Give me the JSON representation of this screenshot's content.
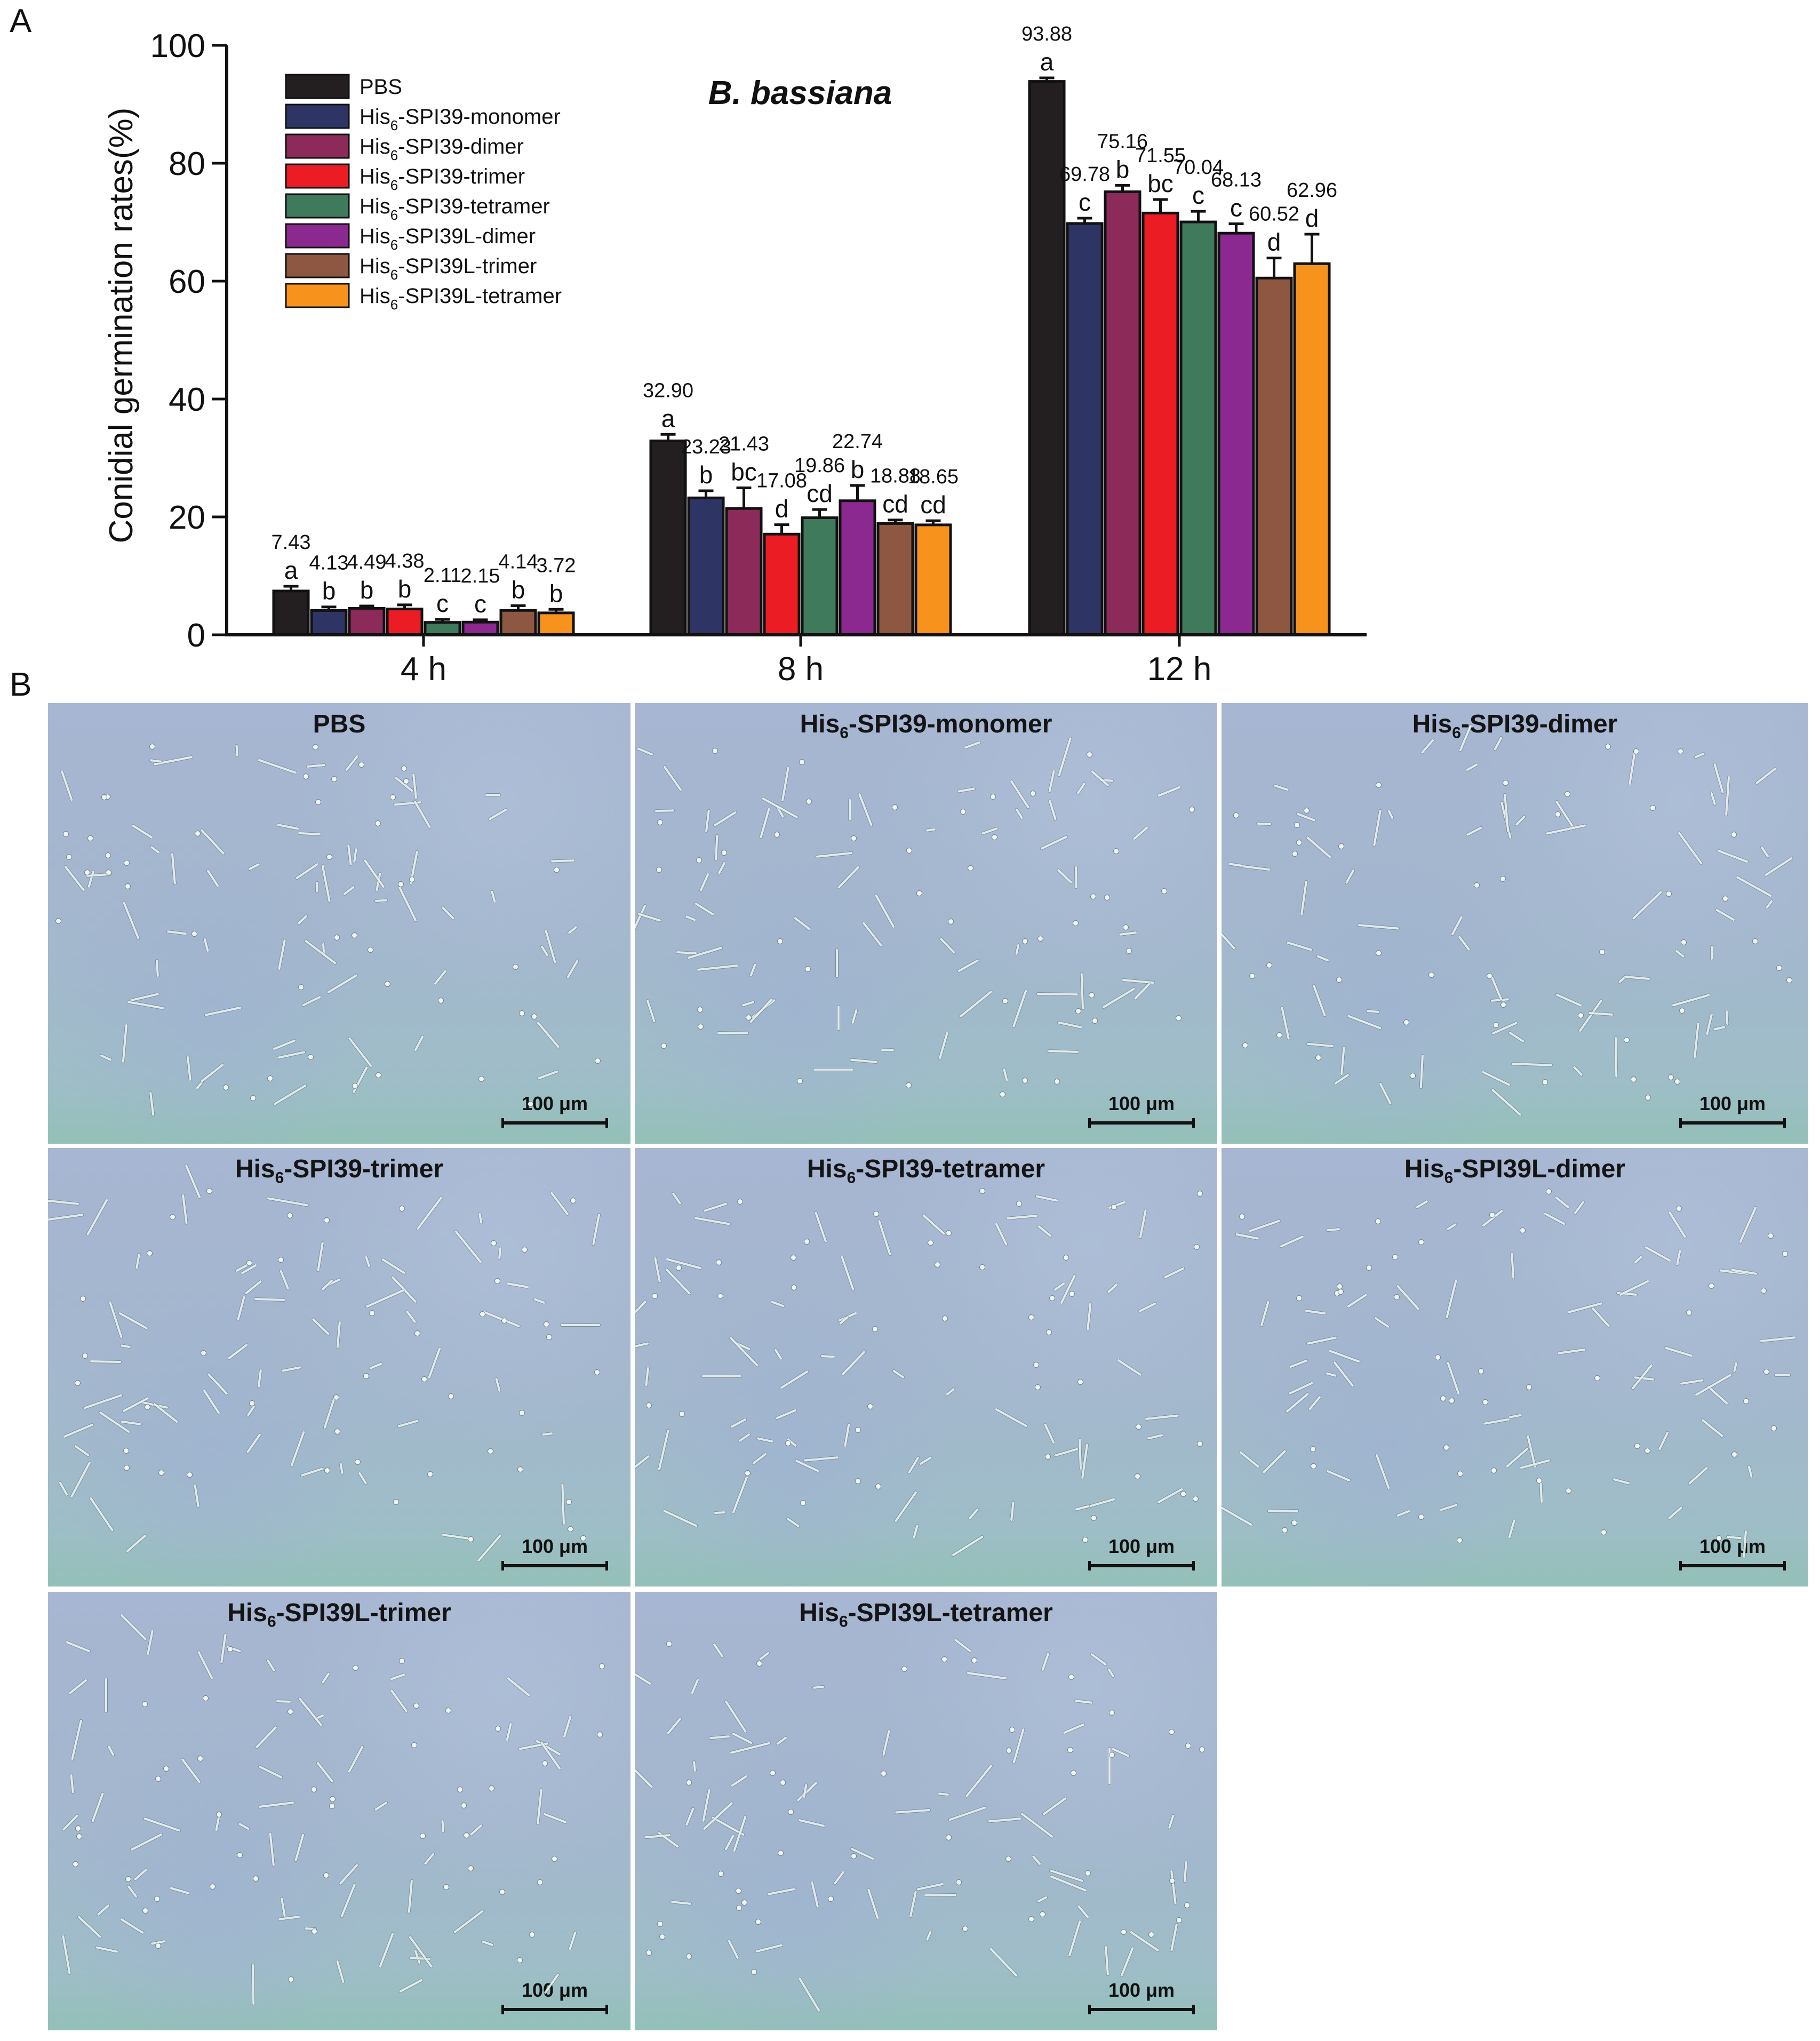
{
  "panel_labels": {
    "a": "A",
    "b": "B"
  },
  "chart_data": {
    "type": "bar",
    "title": "B. bassiana",
    "xlabel": "",
    "ylabel": "Conidial germination rates(%)",
    "ylim": [
      0,
      100
    ],
    "yticks": [
      0,
      20,
      40,
      60,
      80,
      100
    ],
    "categories": [
      "4 h",
      "8 h",
      "12 h"
    ],
    "legend_position": "top-left",
    "series": [
      {
        "name_prefix": "PBS",
        "name_sub": "",
        "name_suffix": "",
        "color": "#231f20",
        "values": [
          7.43,
          32.9,
          93.88
        ],
        "errors": [
          0.8,
          1.1,
          0.6
        ],
        "value_labels": [
          "7.43",
          "32.90",
          "93.88"
        ],
        "letters": [
          "a",
          "a",
          "a"
        ]
      },
      {
        "name_prefix": "His",
        "name_sub": "6",
        "name_suffix": "-SPI39-monomer",
        "color": "#2e3565",
        "values": [
          4.13,
          23.23,
          69.78
        ],
        "errors": [
          0.6,
          1.2,
          0.9
        ],
        "value_labels": [
          "4.13",
          "23.23",
          "69.78"
        ],
        "letters": [
          "b",
          "b",
          "c"
        ]
      },
      {
        "name_prefix": "His",
        "name_sub": "6",
        "name_suffix": "-SPI39-dimer",
        "color": "#8c2b5a",
        "values": [
          4.49,
          21.43,
          75.16
        ],
        "errors": [
          0.4,
          3.5,
          1.1
        ],
        "value_labels": [
          "4.49",
          "21.43",
          "75.16"
        ],
        "letters": [
          "b",
          "bc",
          "b"
        ]
      },
      {
        "name_prefix": "His",
        "name_sub": "6",
        "name_suffix": "-SPI39-trimer",
        "color": "#ec1c24",
        "values": [
          4.38,
          17.08,
          71.55
        ],
        "errors": [
          0.7,
          1.6,
          2.3
        ],
        "value_labels": [
          "4.38",
          "17.08",
          "71.55"
        ],
        "letters": [
          "b",
          "d",
          "bc"
        ]
      },
      {
        "name_prefix": "His",
        "name_sub": "6",
        "name_suffix": "-SPI39-tetramer",
        "color": "#3f7a5c",
        "values": [
          2.11,
          19.86,
          70.04
        ],
        "errors": [
          0.5,
          1.4,
          1.8
        ],
        "value_labels": [
          "2.11",
          "19.86",
          "70.04"
        ],
        "letters": [
          "c",
          "cd",
          "c"
        ]
      },
      {
        "name_prefix": "His",
        "name_sub": "6",
        "name_suffix": "-SPI39L-dimer",
        "color": "#8b2991",
        "values": [
          2.15,
          22.74,
          68.13
        ],
        "errors": [
          0.4,
          2.6,
          1.6
        ],
        "value_labels": [
          "2.15",
          "22.74",
          "68.13"
        ],
        "letters": [
          "c",
          "b",
          "c"
        ]
      },
      {
        "name_prefix": "His",
        "name_sub": "6",
        "name_suffix": "-SPI39L-trimer",
        "color": "#8e5742",
        "values": [
          4.14,
          18.88,
          60.52
        ],
        "errors": [
          0.8,
          0.6,
          3.4
        ],
        "value_labels": [
          "4.14",
          "18.88",
          "60.52"
        ],
        "letters": [
          "b",
          "cd",
          "d"
        ]
      },
      {
        "name_prefix": "His",
        "name_sub": "6",
        "name_suffix": "-SPI39L-tetramer",
        "color": "#f7931d",
        "values": [
          3.72,
          18.65,
          62.96
        ],
        "errors": [
          0.6,
          0.7,
          5.0
        ],
        "value_labels": [
          "3.72",
          "18.65",
          "62.96"
        ],
        "letters": [
          "b",
          "cd",
          "d"
        ]
      }
    ]
  },
  "micrographs": [
    {
      "title_prefix": "PBS",
      "title_sub": "",
      "title_suffix": "",
      "scale_label": "100 μm"
    },
    {
      "title_prefix": "His",
      "title_sub": "6",
      "title_suffix": "-SPI39-monomer",
      "scale_label": "100 μm"
    },
    {
      "title_prefix": "His",
      "title_sub": "6",
      "title_suffix": "-SPI39-dimer",
      "scale_label": "100 μm"
    },
    {
      "title_prefix": "His",
      "title_sub": "6",
      "title_suffix": "-SPI39-trimer",
      "scale_label": "100 μm"
    },
    {
      "title_prefix": "His",
      "title_sub": "6",
      "title_suffix": "-SPI39-tetramer",
      "scale_label": "100 μm"
    },
    {
      "title_prefix": "His",
      "title_sub": "6",
      "title_suffix": "-SPI39L-dimer",
      "scale_label": "100 μm"
    },
    {
      "title_prefix": "His",
      "title_sub": "6",
      "title_suffix": "-SPI39L-trimer",
      "scale_label": "100 μm"
    },
    {
      "title_prefix": "His",
      "title_sub": "6",
      "title_suffix": "-SPI39L-tetramer",
      "scale_label": "100 μm"
    }
  ]
}
